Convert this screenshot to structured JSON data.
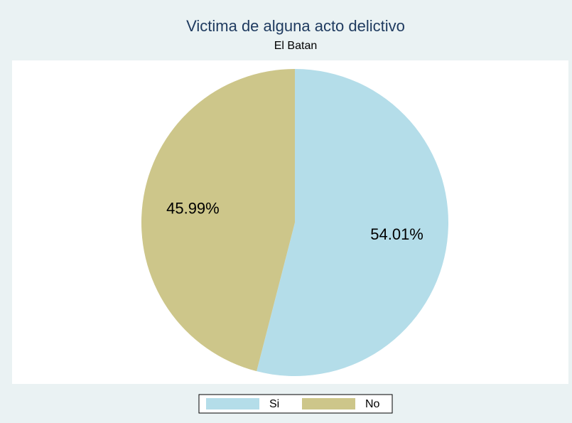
{
  "chart_data": {
    "type": "pie",
    "title": "Victima de alguna acto delictivo",
    "subtitle": "El Batan",
    "categories": [
      "Si",
      "No"
    ],
    "values": [
      54.01,
      45.99
    ],
    "value_labels": [
      "54.01%",
      "45.99%"
    ],
    "colors": [
      "#b4dde9",
      "#cdc68a"
    ]
  }
}
